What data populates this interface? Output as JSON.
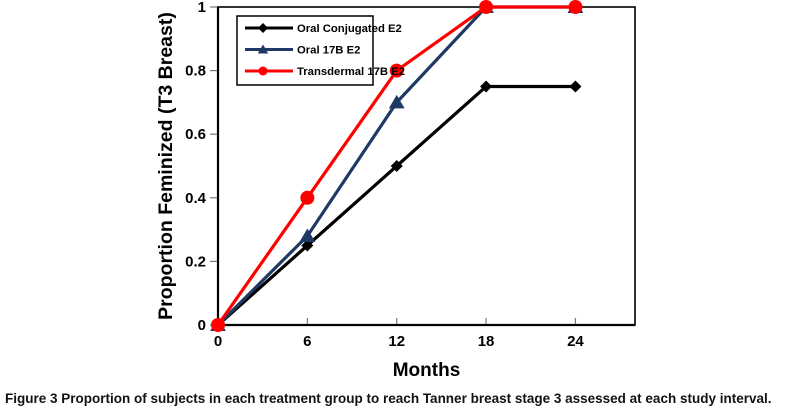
{
  "figure": {
    "caption_label": "Figure 3",
    "caption_text": " Proportion of subjects in each treatment group to reach Tanner breast stage 3 assessed at each study interval."
  },
  "chart_data": {
    "type": "line",
    "title": "",
    "x": [
      0,
      6,
      12,
      18,
      24
    ],
    "xlabel": "Months",
    "ylabel": "Proportion Feminized (T3 Breast)",
    "xlim": [
      0,
      28
    ],
    "ylim": [
      0,
      1
    ],
    "xticks": [
      0,
      6,
      12,
      18,
      24
    ],
    "xtick_labels": [
      "0",
      "6",
      "12",
      "18",
      "24"
    ],
    "yticks": [
      0,
      0.2,
      0.4,
      0.6,
      0.8,
      1
    ],
    "ytick_labels": [
      "0",
      "0.2",
      "0.4",
      "0.6",
      "0.8",
      "1"
    ],
    "grid": false,
    "legend_position": "top-left",
    "axis_color": "#000000",
    "tick_color": "#777777",
    "series": [
      {
        "name": "Oral Conjugated E2",
        "color": "#000000",
        "marker": "diamond",
        "values": [
          0,
          0.25,
          0.5,
          0.75,
          0.75
        ]
      },
      {
        "name": "Oral 17B E2",
        "color": "#1F3864",
        "marker": "triangle",
        "values": [
          0,
          0.28,
          0.7,
          1,
          1
        ]
      },
      {
        "name": "Transdermal 17B E2",
        "color": "#FF0000",
        "marker": "circle",
        "values": [
          0,
          0.4,
          0.8,
          1,
          1
        ]
      }
    ]
  }
}
